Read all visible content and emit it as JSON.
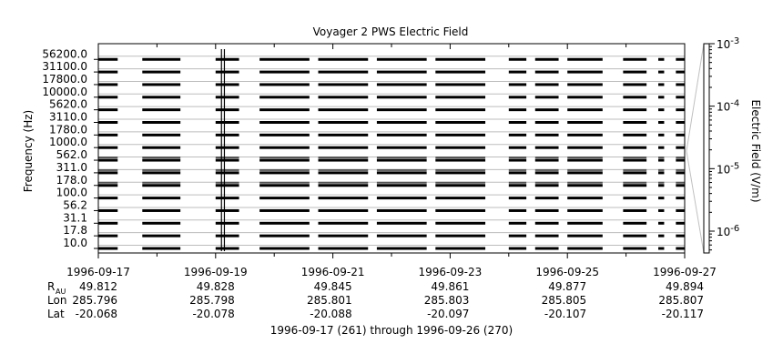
{
  "chart_data": {
    "type": "heatmap",
    "title": "Voyager 2 PWS Electric Field",
    "ylabel": "Frequency (Hz)",
    "zlabel": "Electric Field (V/m)",
    "subtitle": "1996-09-17 (261) through 1996-09-26 (270)",
    "y_channels": [
      "10.0",
      "17.8",
      "31.1",
      "56.2",
      "100.0",
      "178.0",
      "311.0",
      "562.0",
      "1000.0",
      "1780.0",
      "3110.0",
      "5620.0",
      "10000.0",
      "17800.0",
      "31100.0",
      "56200.0"
    ],
    "x_tick_labels": [
      "1996-09-17",
      "1996-09-19",
      "1996-09-21",
      "1996-09-23",
      "1996-09-25",
      "1996-09-27"
    ],
    "x_range_days": [
      0,
      10
    ],
    "z_scale": "log",
    "z_range": [
      4.47e-07,
      0.001
    ],
    "z_major_ticks": [
      {
        "base": "10",
        "exp": "-6",
        "value": 1e-06
      },
      {
        "base": "10",
        "exp": "-5",
        "value": 1e-05
      },
      {
        "base": "10",
        "exp": "-4",
        "value": 0.0001
      },
      {
        "base": "10",
        "exp": "-3",
        "value": 0.001
      }
    ],
    "data_segments_days": [
      [
        0.0,
        0.33
      ],
      [
        0.75,
        1.4
      ],
      [
        2.0,
        2.4
      ],
      [
        2.75,
        3.6
      ],
      [
        3.75,
        4.6
      ],
      [
        4.75,
        5.6
      ],
      [
        5.75,
        6.6
      ],
      [
        7.0,
        7.3
      ],
      [
        7.45,
        7.85
      ],
      [
        8.0,
        8.6
      ],
      [
        8.95,
        9.35
      ],
      [
        9.55,
        9.65
      ],
      [
        9.85,
        10.0
      ]
    ],
    "burst_days": [
      2.1,
      2.15
    ],
    "ephemeris": [
      {
        "label": "R",
        "sub": "AU",
        "values": [
          "49.812",
          "49.828",
          "49.845",
          "49.861",
          "49.877",
          "49.894"
        ]
      },
      {
        "label": "Lon",
        "sub": "",
        "values": [
          "285.796",
          "285.798",
          "285.801",
          "285.803",
          "285.805",
          "285.807"
        ]
      },
      {
        "label": "Lat",
        "sub": "",
        "values": [
          "-20.068",
          "-20.078",
          "-20.088",
          "-20.097",
          "-20.107",
          "-20.117"
        ]
      }
    ]
  }
}
